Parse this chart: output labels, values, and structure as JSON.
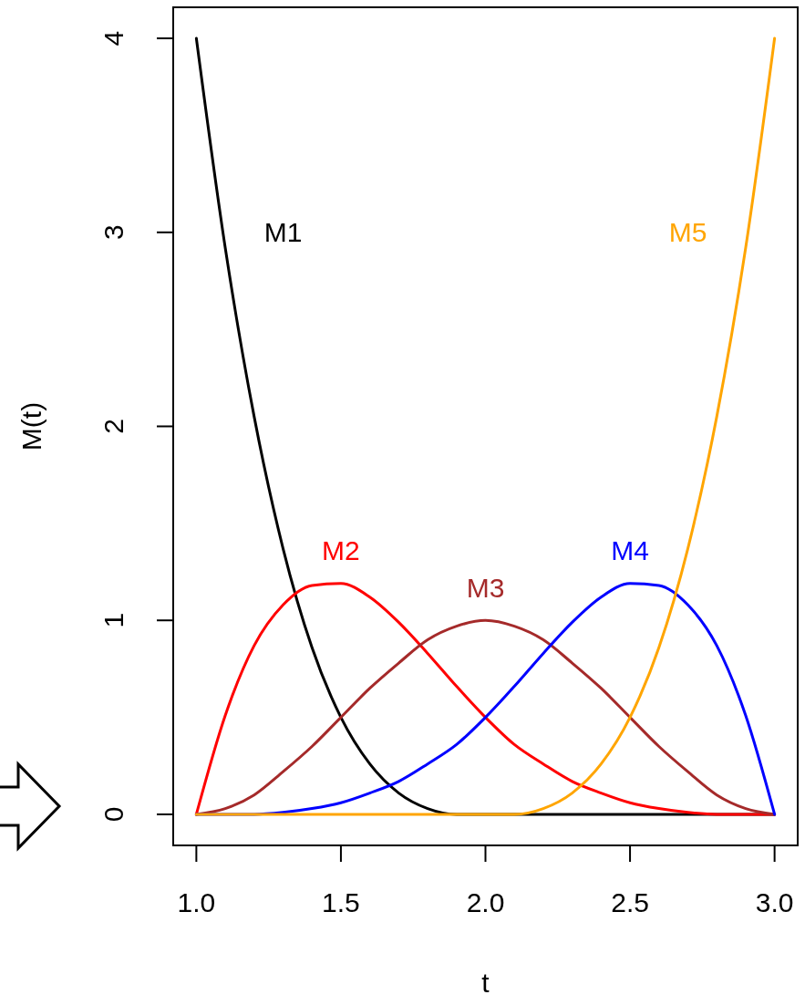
{
  "chart_data": {
    "type": "line",
    "xlabel": "t",
    "ylabel": "M(t)",
    "x": [
      1.0,
      1.1,
      1.2,
      1.3,
      1.4,
      1.5,
      1.6,
      1.7,
      1.8,
      1.9,
      2.0,
      2.1,
      2.2,
      2.3,
      2.4,
      2.5,
      2.6,
      2.7,
      2.8,
      2.9,
      3.0
    ],
    "series": [
      {
        "name": "M1",
        "color": "#000000",
        "values": [
          4,
          2.92,
          2.05,
          1.37,
          0.86,
          0.5,
          0.26,
          0.11,
          0.03,
          0,
          0,
          0,
          0,
          0,
          0,
          0,
          0,
          0,
          0,
          0,
          0
        ]
      },
      {
        "name": "M2",
        "color": "#ff0000",
        "values": [
          0,
          0.51,
          0.87,
          1.08,
          1.18,
          1.19,
          1.12,
          0.99,
          0.83,
          0.66,
          0.5,
          0.36,
          0.26,
          0.17,
          0.11,
          0.06,
          0.03,
          0.01,
          0,
          0,
          0
        ]
      },
      {
        "name": "M3",
        "color": "#a52a2a",
        "values": [
          0,
          0.03,
          0.1,
          0.22,
          0.35,
          0.5,
          0.65,
          0.78,
          0.9,
          0.97,
          1,
          0.97,
          0.9,
          0.78,
          0.65,
          0.5,
          0.35,
          0.22,
          0.1,
          0.03,
          0
        ]
      },
      {
        "name": "M4",
        "color": "#0000ff",
        "values": [
          0,
          0,
          0,
          0.01,
          0.03,
          0.06,
          0.11,
          0.17,
          0.26,
          0.36,
          0.5,
          0.66,
          0.83,
          0.99,
          1.12,
          1.19,
          1.18,
          1.08,
          0.87,
          0.51,
          0
        ]
      },
      {
        "name": "M5",
        "color": "#ffa500",
        "values": [
          0,
          0,
          0,
          0,
          0,
          0,
          0,
          0,
          0,
          0,
          0,
          0,
          0.03,
          0.11,
          0.26,
          0.5,
          0.86,
          1.37,
          2.05,
          2.92,
          4
        ]
      }
    ],
    "xlim": [
      0.92,
      3.08
    ],
    "ylim": [
      -0.16,
      4.16
    ],
    "xticks": [
      {
        "value": 1,
        "label": "1.0"
      },
      {
        "value": 1.5,
        "label": "1.5"
      },
      {
        "value": 2,
        "label": "2.0"
      },
      {
        "value": 2.5,
        "label": "2.5"
      },
      {
        "value": 3,
        "label": "3.0"
      }
    ],
    "yticks": [
      0,
      1,
      2,
      3,
      4
    ]
  }
}
